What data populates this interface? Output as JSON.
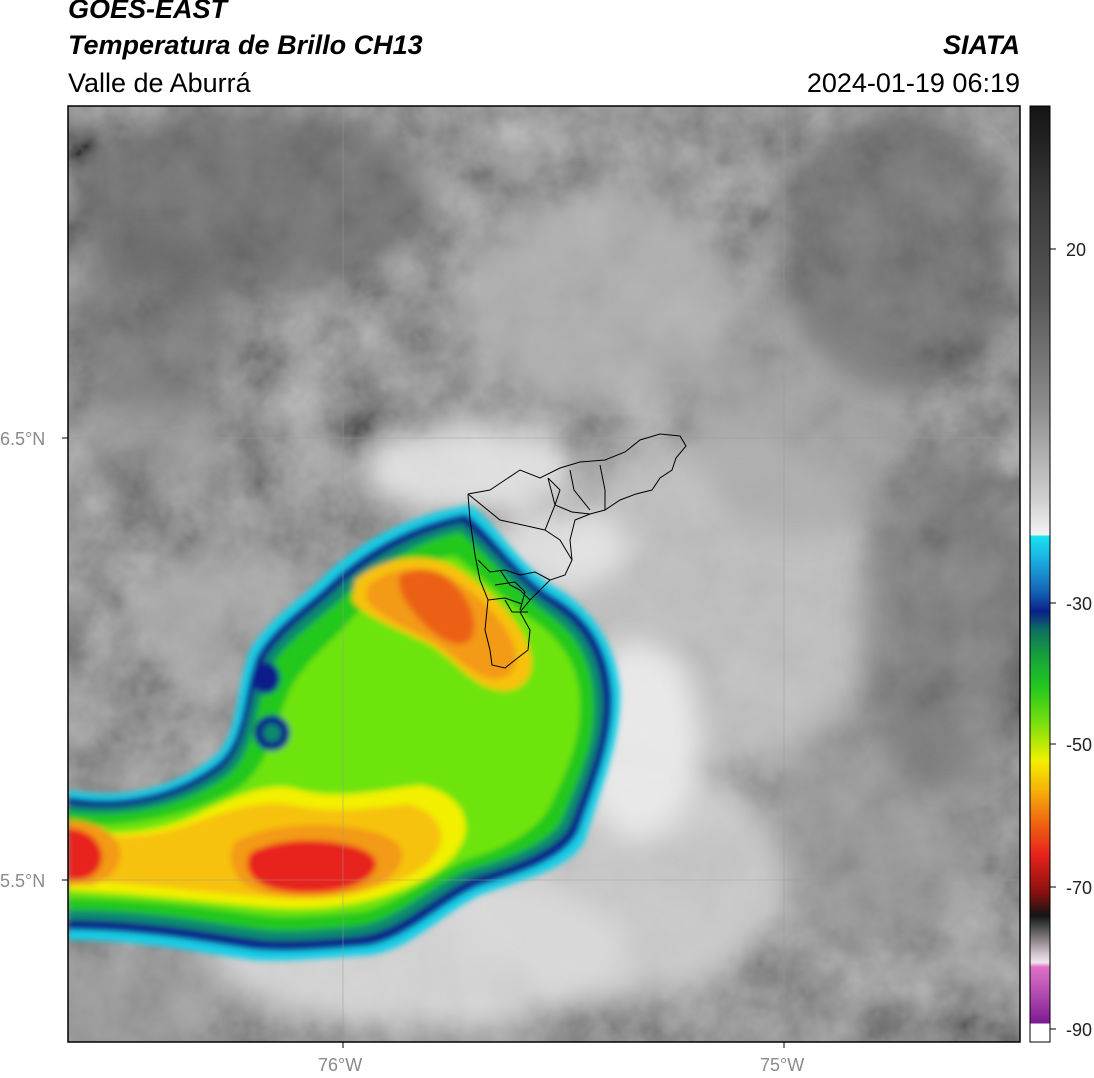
{
  "header": {
    "satellite": "GOES-EAST",
    "product": "Temperatura de Brillo CH13",
    "region": "Valle de Aburrá",
    "agency": "SIATA",
    "timestamp": "2024-01-19 06:19"
  },
  "map": {
    "lat_labels": [
      "6.5°N",
      "5.5°N"
    ],
    "lon_labels": [
      "76°W",
      "75°W"
    ]
  },
  "colorbar": {
    "tick_labels": [
      "20",
      "-30",
      "-50",
      "-70",
      "-90"
    ],
    "colors": {
      "warm_gray": "#6e6e6e",
      "cold_white": "#f4f4f4",
      "cyan": "#19cde6",
      "navy": "#0b1f8a",
      "green": "#22c81e",
      "yellow": "#f2f000",
      "orange": "#f39a12",
      "red": "#e8221a",
      "dark": "#141414",
      "magenta": "#d06ac9",
      "purple": "#7d1a8f"
    }
  }
}
